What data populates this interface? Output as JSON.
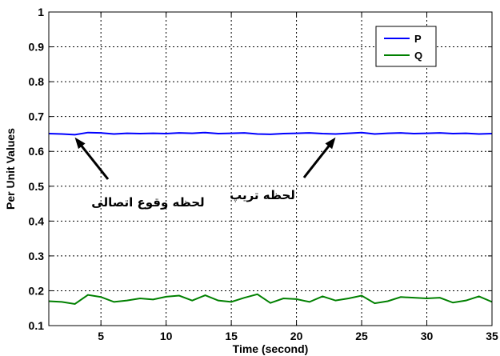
{
  "chart_data": {
    "type": "line",
    "xlabel": "Time (second)",
    "ylabel": "Per Unit Values",
    "xlim": [
      1,
      35
    ],
    "ylim": [
      0.1,
      1.0
    ],
    "xticks": [
      5,
      10,
      15,
      20,
      25,
      30,
      35
    ],
    "yticks": [
      0.1,
      0.2,
      0.3,
      0.4,
      0.5,
      0.6,
      0.7,
      0.8,
      0.9,
      1.0
    ],
    "grid": true,
    "legend_position": "top-right",
    "series": [
      {
        "name": "P",
        "color": "#0000ff",
        "x": [
          1,
          2,
          3,
          4,
          5,
          6,
          7,
          8,
          9,
          10,
          11,
          12,
          13,
          14,
          15,
          16,
          17,
          18,
          19,
          20,
          21,
          22,
          23,
          24,
          25,
          26,
          27,
          28,
          29,
          30,
          31,
          32,
          33,
          34,
          35
        ],
        "values": [
          0.651,
          0.65,
          0.648,
          0.654,
          0.653,
          0.65,
          0.652,
          0.651,
          0.652,
          0.651,
          0.653,
          0.652,
          0.654,
          0.651,
          0.652,
          0.653,
          0.65,
          0.649,
          0.651,
          0.652,
          0.653,
          0.651,
          0.65,
          0.652,
          0.654,
          0.65,
          0.652,
          0.653,
          0.651,
          0.652,
          0.653,
          0.651,
          0.652,
          0.65,
          0.651
        ]
      },
      {
        "name": "Q",
        "color": "#008000",
        "x": [
          1,
          2,
          3,
          4,
          5,
          6,
          7,
          8,
          9,
          10,
          11,
          12,
          13,
          14,
          15,
          16,
          17,
          18,
          19,
          20,
          21,
          22,
          23,
          24,
          25,
          26,
          27,
          28,
          29,
          30,
          31,
          32,
          33,
          34,
          35
        ],
        "values": [
          0.17,
          0.168,
          0.162,
          0.188,
          0.182,
          0.168,
          0.172,
          0.178,
          0.175,
          0.183,
          0.186,
          0.172,
          0.187,
          0.172,
          0.168,
          0.18,
          0.19,
          0.165,
          0.178,
          0.176,
          0.168,
          0.184,
          0.172,
          0.178,
          0.186,
          0.164,
          0.17,
          0.182,
          0.18,
          0.178,
          0.18,
          0.166,
          0.172,
          0.184,
          0.168
        ]
      }
    ],
    "annotations": [
      {
        "text": "لحظه وقوع اتصالی",
        "arrow_to": [
          3,
          0.64
        ]
      },
      {
        "text": "لحظه تریپ",
        "arrow_to": [
          23,
          0.64
        ]
      }
    ]
  }
}
